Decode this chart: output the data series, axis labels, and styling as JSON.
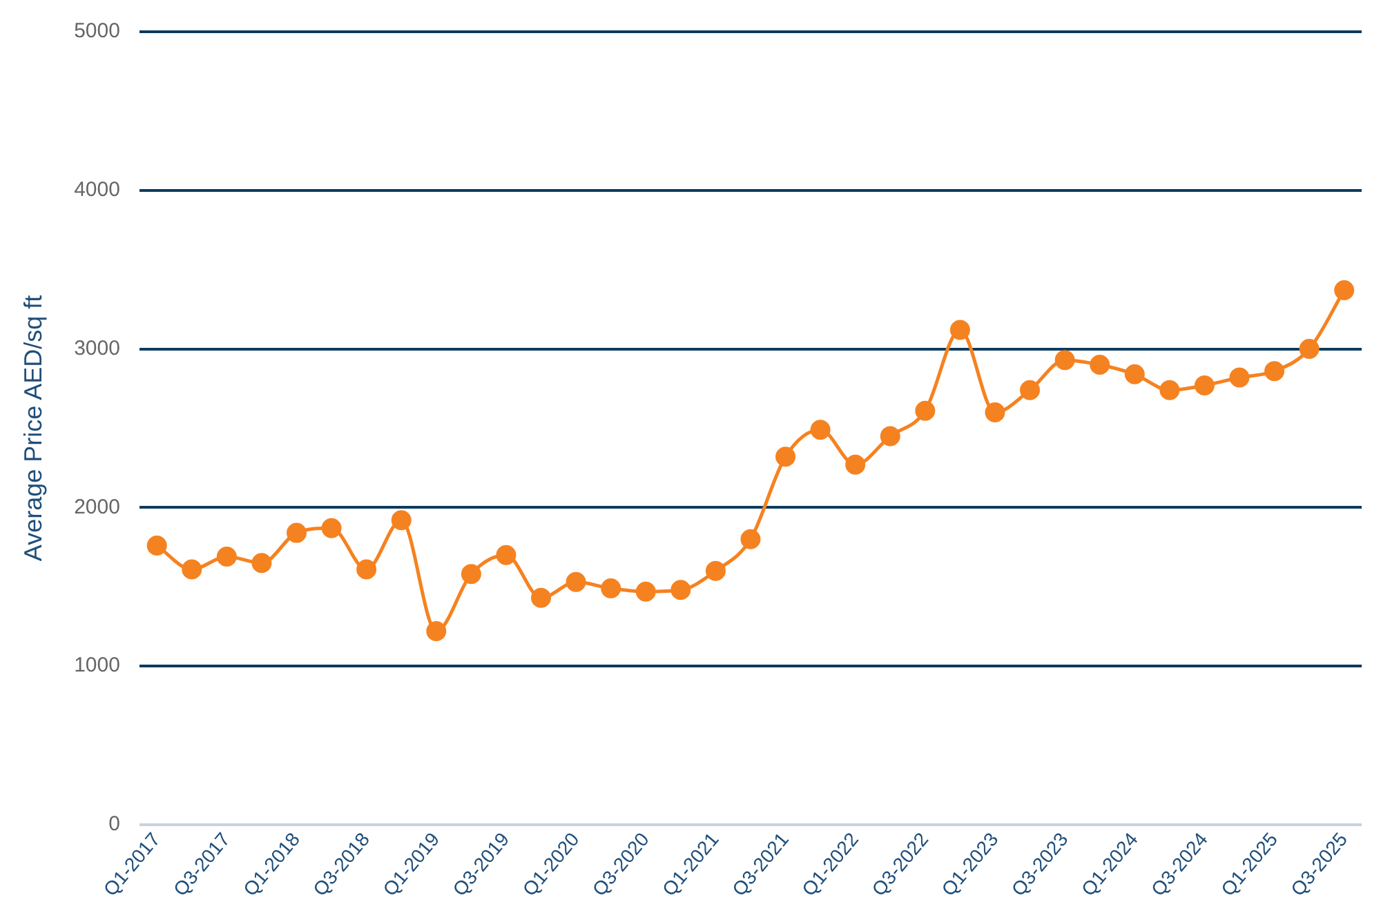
{
  "chart_data": {
    "type": "line",
    "ylabel": "Average Price AED/sq ft",
    "categories": [
      "Q1-2017",
      null,
      "Q3-2017",
      null,
      "Q1-2018",
      null,
      "Q3-2018",
      null,
      "Q1-2019",
      null,
      "Q3-2019",
      null,
      "Q1-2020",
      null,
      "Q3-2020",
      null,
      "Q1-2021",
      null,
      "Q3-2021",
      null,
      "Q1-2022",
      null,
      "Q3-2022",
      null,
      "Q1-2023",
      null,
      "Q3-2023",
      null,
      "Q1-2024",
      null,
      "Q3-2024",
      null,
      "Q1-2025",
      null,
      "Q3-2025"
    ],
    "series": [
      {
        "color": "#f58220",
        "values": [
          1760,
          1610,
          1690,
          1650,
          1840,
          1870,
          1610,
          1920,
          1220,
          1580,
          1700,
          1430,
          1530,
          1490,
          1470,
          1480,
          1600,
          1800,
          2320,
          2490,
          2270,
          2450,
          2610,
          3120,
          2600,
          2740,
          2930,
          2900,
          2840,
          2740,
          2770,
          2820,
          2860,
          3000,
          3370
        ]
      }
    ],
    "ylim": [
      0,
      5000
    ],
    "yticks": [
      0,
      1000,
      2000,
      3000,
      4000,
      5000
    ],
    "grid": "y",
    "legend": false,
    "marker": "circle",
    "line_style": "solid"
  }
}
